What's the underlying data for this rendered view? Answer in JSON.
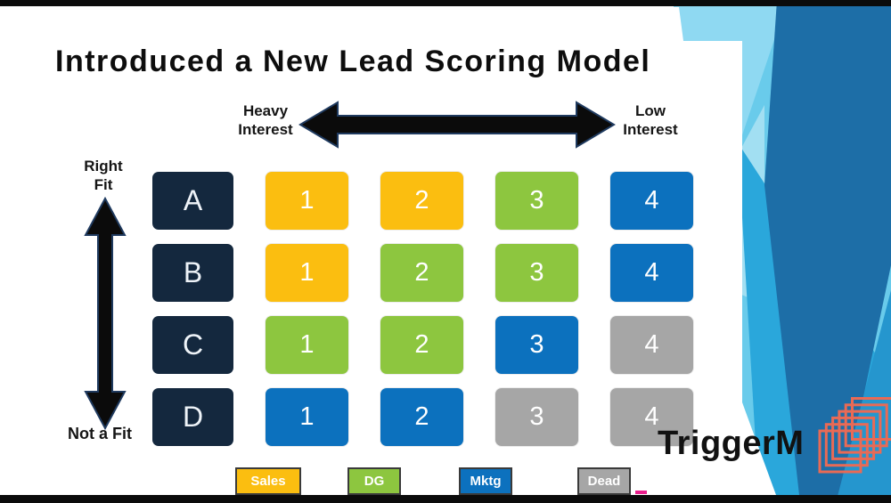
{
  "slide": {
    "title": "Introduced a New Lead Scoring Model"
  },
  "axes": {
    "horizontal": {
      "left": "Heavy\nInterest",
      "right": "Low\nInterest"
    },
    "vertical": {
      "top": "Right\nFit",
      "bottom": "Not a Fit"
    }
  },
  "matrix": {
    "row_labels": [
      "A",
      "B",
      "C",
      "D"
    ],
    "columns": [
      "1",
      "2",
      "3",
      "4"
    ],
    "cells": [
      [
        "sales",
        "sales",
        "dg",
        "mktg"
      ],
      [
        "sales",
        "dg",
        "dg",
        "mktg"
      ],
      [
        "dg",
        "dg",
        "mktg",
        "dead"
      ],
      [
        "mktg",
        "mktg",
        "dead",
        "dead"
      ]
    ]
  },
  "legend": [
    {
      "label": "Sales",
      "key": "sales"
    },
    {
      "label": "DG",
      "key": "dg"
    },
    {
      "label": "Mktg",
      "key": "mktg"
    },
    {
      "label": "Dead",
      "key": "dead"
    }
  ],
  "colors": {
    "sales": "#FBBE10",
    "dg": "#8DC63F",
    "mktg": "#0C71BE",
    "dead": "#A6A6A6",
    "row_label_bg": "#14283E",
    "logo_icon": "#E96A55",
    "bg_light": "#69CBEB",
    "bg_medium": "#2AA7DB",
    "bg_dark": "#1D6EA7"
  },
  "logo": {
    "text": "TriggerM"
  }
}
